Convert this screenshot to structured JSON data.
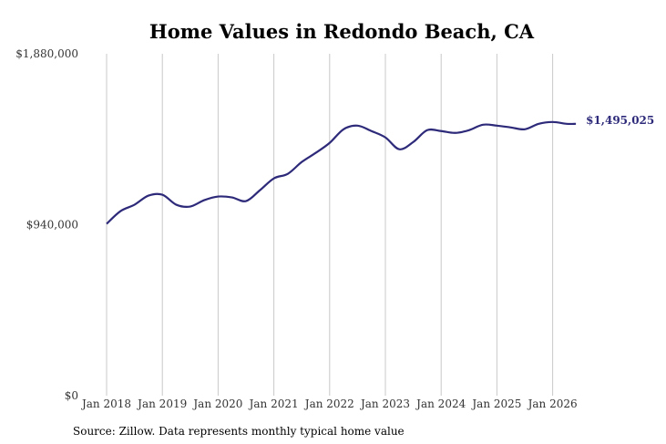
{
  "chart_data": {
    "type": "line",
    "title": "Home Values in Redondo Beach, CA",
    "xlabel": "",
    "ylabel": "",
    "source": "Source: Zillow. Data represents monthly typical home value",
    "grid": {
      "vertical": true,
      "horizontal": false
    },
    "y_axis": {
      "min": 0,
      "max": 1880000,
      "ticks": [
        0,
        940000,
        1880000
      ],
      "tick_labels": [
        "$0",
        "$940,000",
        "$1,880,000"
      ]
    },
    "x_axis": {
      "range": [
        "2018-01",
        "2026-06"
      ],
      "ticks": [
        "2018-01",
        "2019-01",
        "2020-01",
        "2021-01",
        "2022-01",
        "2023-01",
        "2024-01",
        "2025-01",
        "2026-01"
      ],
      "tick_labels": [
        "Jan 2018",
        "Jan 2019",
        "Jan 2020",
        "Jan 2021",
        "Jan 2022",
        "Jan 2023",
        "Jan 2024",
        "Jan 2025",
        "Jan 2026"
      ]
    },
    "series": [
      {
        "color": "#2e2a7a",
        "end_label": "$1,495,025",
        "points": [
          [
            "2018-01",
            945000
          ],
          [
            "2018-04",
            1015000
          ],
          [
            "2018-07",
            1050000
          ],
          [
            "2018-10",
            1100000
          ],
          [
            "2019-01",
            1105000
          ],
          [
            "2019-04",
            1050000
          ],
          [
            "2019-07",
            1040000
          ],
          [
            "2019-10",
            1075000
          ],
          [
            "2020-01",
            1095000
          ],
          [
            "2020-04",
            1090000
          ],
          [
            "2020-07",
            1070000
          ],
          [
            "2020-10",
            1130000
          ],
          [
            "2021-01",
            1195000
          ],
          [
            "2021-04",
            1220000
          ],
          [
            "2021-07",
            1285000
          ],
          [
            "2021-10",
            1335000
          ],
          [
            "2022-01",
            1390000
          ],
          [
            "2022-04",
            1465000
          ],
          [
            "2022-07",
            1485000
          ],
          [
            "2022-10",
            1455000
          ],
          [
            "2023-01",
            1420000
          ],
          [
            "2023-04",
            1355000
          ],
          [
            "2023-07",
            1395000
          ],
          [
            "2023-10",
            1460000
          ],
          [
            "2024-01",
            1455000
          ],
          [
            "2024-04",
            1445000
          ],
          [
            "2024-07",
            1460000
          ],
          [
            "2024-10",
            1490000
          ],
          [
            "2025-01",
            1485000
          ],
          [
            "2025-04",
            1475000
          ],
          [
            "2025-07",
            1465000
          ],
          [
            "2025-10",
            1495000
          ],
          [
            "2026-01",
            1505000
          ],
          [
            "2026-04",
            1495025
          ],
          [
            "2026-06",
            1495025
          ]
        ]
      }
    ]
  }
}
